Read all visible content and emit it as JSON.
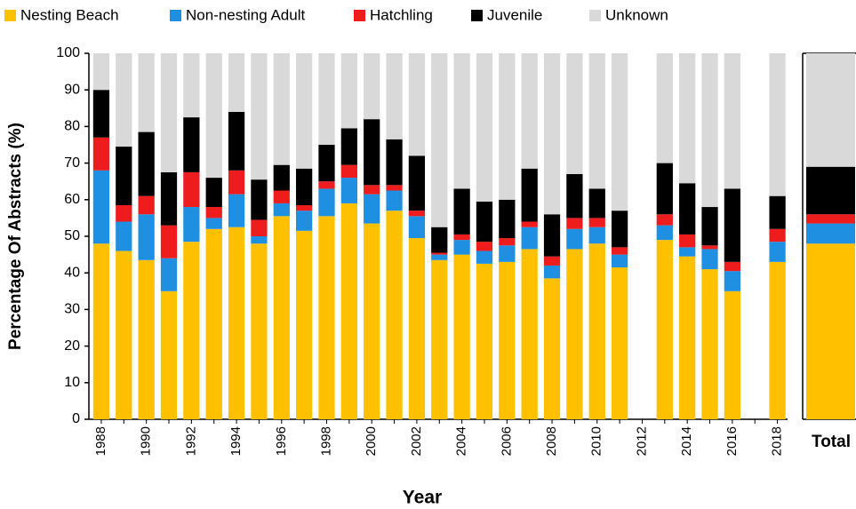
{
  "chart_data": [
    {
      "type": "bar",
      "stacked": true,
      "x_label": "Year",
      "y_label": "Percentage Of Abstracts (%)",
      "legend": "top",
      "categories": [
        "1988",
        null,
        "1990",
        null,
        "1992",
        null,
        "1994",
        null,
        "1996",
        null,
        "1998",
        null,
        "2000",
        null,
        "2002",
        null,
        "2004",
        null,
        "2006",
        null,
        "2008",
        null,
        "2010",
        null,
        "2012",
        null,
        "2014",
        null,
        "2016",
        null,
        "2018"
      ],
      "ylim": [
        0,
        100
      ],
      "yticks": [
        0,
        10,
        20,
        30,
        40,
        50,
        60,
        70,
        80,
        90,
        100
      ],
      "series": [
        {
          "name": "Nesting Beach",
          "color": "#FFC000",
          "values": [
            48,
            46,
            43.5,
            35,
            48.5,
            52,
            52.5,
            48,
            55.5,
            51.5,
            55.5,
            59,
            53.5,
            57,
            49.5,
            43.5,
            45,
            42.5,
            43,
            46.5,
            38.5,
            46.5,
            48,
            41.5,
            null,
            49,
            44.5,
            41,
            35,
            null,
            43
          ]
        },
        {
          "name": "Non-nesting Adult",
          "color": "#1E8FE1",
          "values": [
            20,
            8,
            12.5,
            9,
            9.5,
            3,
            9,
            2,
            3.5,
            5.5,
            7.5,
            7,
            8,
            5.5,
            6,
            1.5,
            4,
            3.5,
            4.5,
            6,
            3.5,
            5.5,
            4.5,
            3.5,
            null,
            4,
            2.5,
            5.5,
            5.5,
            null,
            5.5
          ]
        },
        {
          "name": "Hatchling",
          "color": "#EE1C1C",
          "values": [
            9,
            4.5,
            5,
            9,
            9.5,
            3,
            6.5,
            4.5,
            3.5,
            1.5,
            2,
            3.5,
            2.5,
            1.5,
            1.5,
            0.5,
            1.5,
            2.5,
            2,
            1.5,
            2.5,
            3,
            2.5,
            2,
            null,
            3,
            3.5,
            1,
            2.5,
            null,
            3.5
          ]
        },
        {
          "name": "Juvenile",
          "color": "#000000",
          "values": [
            13,
            16,
            17.5,
            14.5,
            15,
            8,
            16,
            11,
            7,
            10,
            10,
            10,
            18,
            12.5,
            15,
            7,
            12.5,
            11,
            10.5,
            14.5,
            11.5,
            12,
            8,
            10,
            null,
            14,
            14,
            10.5,
            20,
            null,
            9
          ]
        },
        {
          "name": "Unknown",
          "color": "#D9D9D9",
          "values": [
            10,
            25.5,
            21.5,
            32.5,
            17.5,
            34,
            16,
            34.5,
            30.5,
            31.5,
            25,
            20.5,
            18,
            23.5,
            28,
            47.5,
            37,
            40.5,
            40,
            31.5,
            44,
            33,
            37,
            43,
            null,
            30,
            35.5,
            42,
            37,
            null,
            39
          ]
        }
      ]
    },
    {
      "type": "bar",
      "stacked": true,
      "categories": [
        "Total"
      ],
      "ylim": [
        0,
        100
      ],
      "series": [
        {
          "color": "#FFC000",
          "values": [
            48
          ]
        },
        {
          "color": "#1E8FE1",
          "values": [
            5.5
          ]
        },
        {
          "color": "#EE1C1C",
          "values": [
            2.5
          ]
        },
        {
          "color": "#000000",
          "values": [
            13
          ]
        },
        {
          "color": "#D9D9D9",
          "values": [
            31
          ]
        }
      ]
    }
  ]
}
